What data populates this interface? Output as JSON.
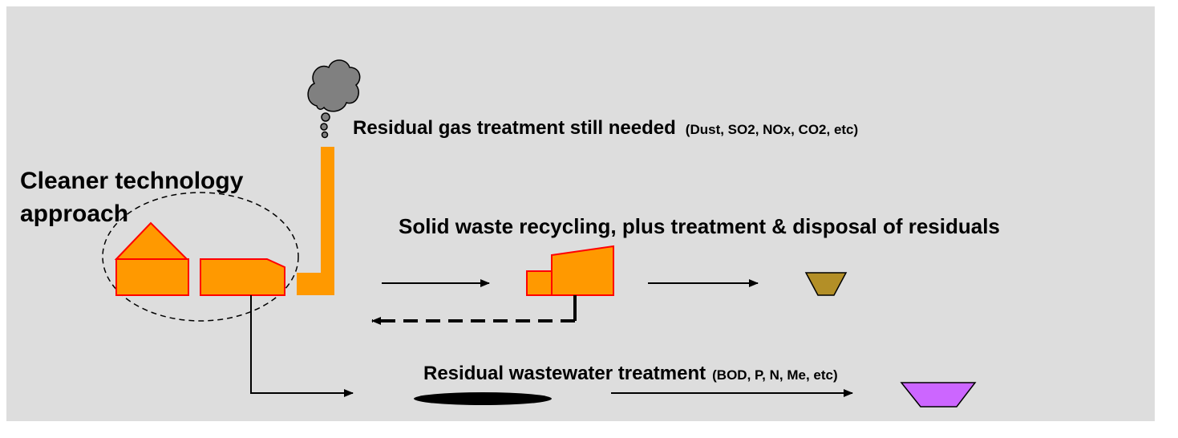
{
  "labels": {
    "approach": [
      "Cleaner technology",
      "approach"
    ],
    "gas": {
      "main": "Residual gas treatment still needed",
      "detail": "(Dust, SO2, NOx, CO2, etc)"
    },
    "solid": {
      "main": "Solid waste recycling, plus treatment & disposal of residuals"
    },
    "water": {
      "main": "Residual wastewater treatment",
      "detail": "(BOD, P, N, Me, etc)"
    }
  }
}
